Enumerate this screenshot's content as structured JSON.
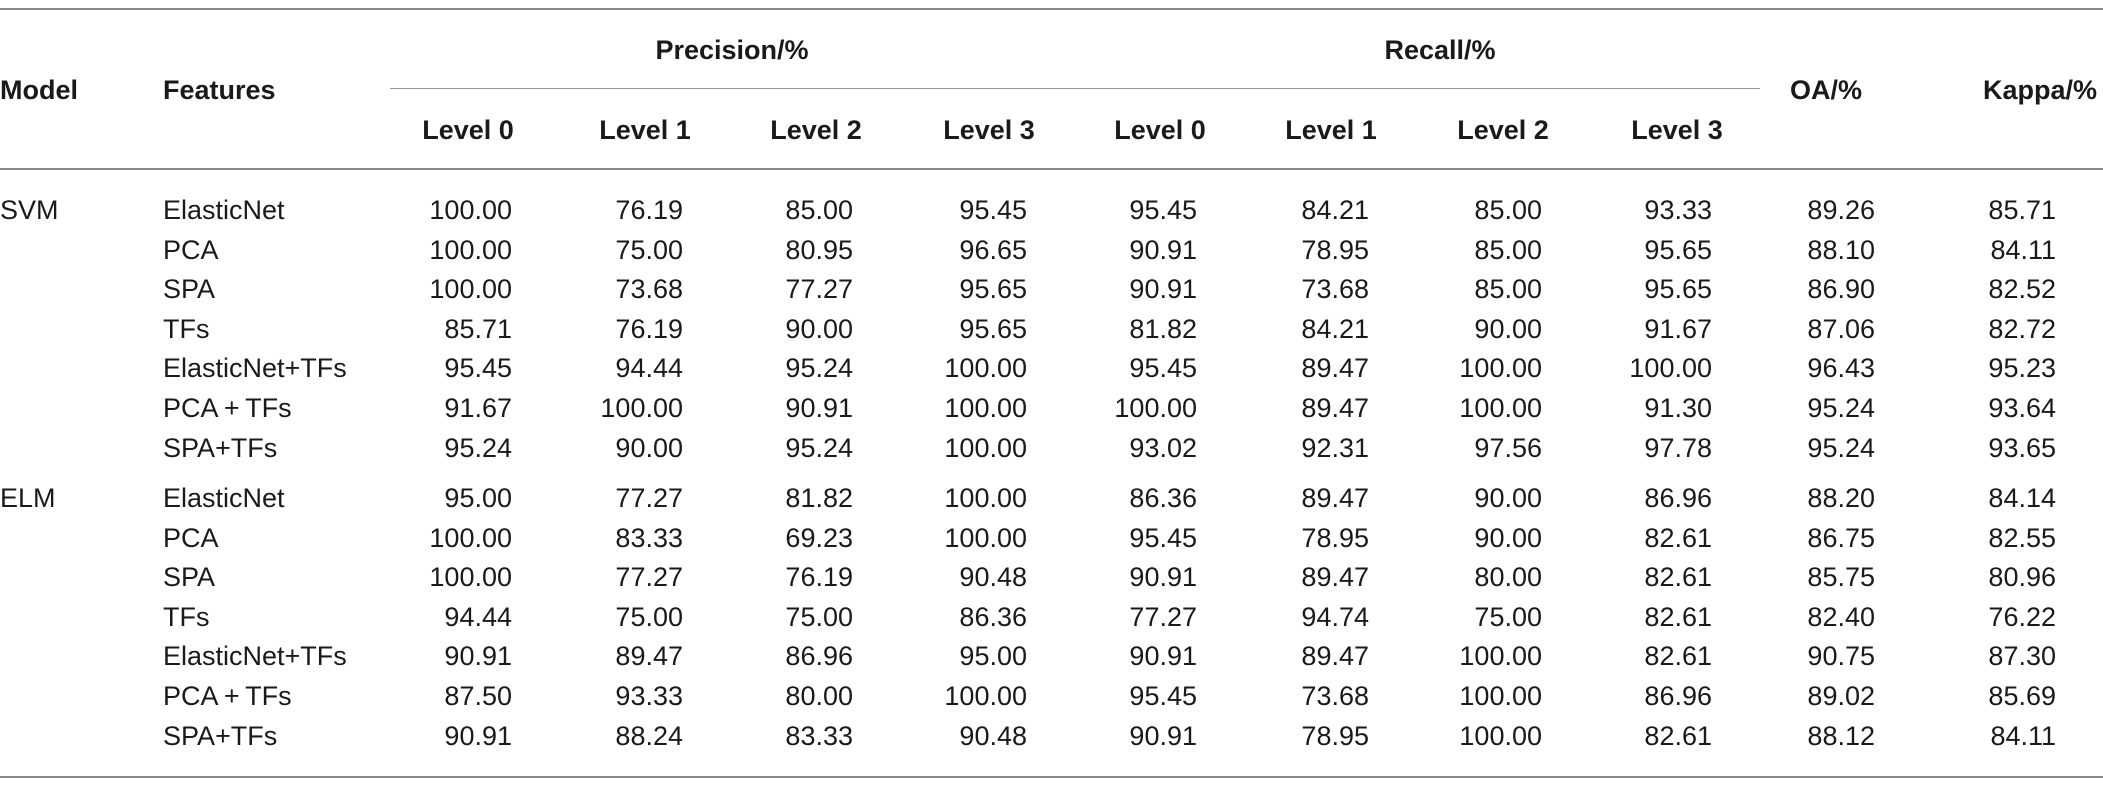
{
  "table": {
    "headers": {
      "model": "Model",
      "features": "Features",
      "precision_group": "Precision/%",
      "recall_group": "Recall/%",
      "oa": "OA/%",
      "kappa": "Kappa/%",
      "levels": [
        "Level 0",
        "Level 1",
        "Level 2",
        "Level 3"
      ]
    },
    "groups": [
      {
        "model": "SVM",
        "rows": [
          {
            "features": "ElasticNet",
            "values": [
              "100.00",
              "76.19",
              "85.00",
              "95.45",
              "95.45",
              "84.21",
              "85.00",
              "93.33",
              "89.26",
              "85.71"
            ]
          },
          {
            "features": "PCA",
            "values": [
              "100.00",
              "75.00",
              "80.95",
              "96.65",
              "90.91",
              "78.95",
              "85.00",
              "95.65",
              "88.10",
              "84.11"
            ]
          },
          {
            "features": "SPA",
            "values": [
              "100.00",
              "73.68",
              "77.27",
              "95.65",
              "90.91",
              "73.68",
              "85.00",
              "95.65",
              "86.90",
              "82.52"
            ]
          },
          {
            "features": "TFs",
            "values": [
              "85.71",
              "76.19",
              "90.00",
              "95.65",
              "81.82",
              "84.21",
              "90.00",
              "91.67",
              "87.06",
              "82.72"
            ]
          },
          {
            "features": "ElasticNet+TFs",
            "values": [
              "95.45",
              "94.44",
              "95.24",
              "100.00",
              "95.45",
              "89.47",
              "100.00",
              "100.00",
              "96.43",
              "95.23"
            ]
          },
          {
            "features": "PCA + TFs",
            "values": [
              "91.67",
              "100.00",
              "90.91",
              "100.00",
              "100.00",
              "89.47",
              "100.00",
              "91.30",
              "95.24",
              "93.64"
            ]
          },
          {
            "features": "SPA+TFs",
            "values": [
              "95.24",
              "90.00",
              "95.24",
              "100.00",
              "93.02",
              "92.31",
              "97.56",
              "97.78",
              "95.24",
              "93.65"
            ]
          }
        ]
      },
      {
        "model": "ELM",
        "rows": [
          {
            "features": "ElasticNet",
            "values": [
              "95.00",
              "77.27",
              "81.82",
              "100.00",
              "86.36",
              "89.47",
              "90.00",
              "86.96",
              "88.20",
              "84.14"
            ]
          },
          {
            "features": "PCA",
            "values": [
              "100.00",
              "83.33",
              "69.23",
              "100.00",
              "95.45",
              "78.95",
              "90.00",
              "82.61",
              "86.75",
              "82.55"
            ]
          },
          {
            "features": "SPA",
            "values": [
              "100.00",
              "77.27",
              "76.19",
              "90.48",
              "90.91",
              "89.47",
              "80.00",
              "82.61",
              "85.75",
              "80.96"
            ]
          },
          {
            "features": "TFs",
            "values": [
              "94.44",
              "75.00",
              "75.00",
              "86.36",
              "77.27",
              "94.74",
              "75.00",
              "82.61",
              "82.40",
              "76.22"
            ]
          },
          {
            "features": "ElasticNet+TFs",
            "values": [
              "90.91",
              "89.47",
              "86.96",
              "95.00",
              "90.91",
              "89.47",
              "100.00",
              "82.61",
              "90.75",
              "87.30"
            ]
          },
          {
            "features": "PCA + TFs",
            "values": [
              "87.50",
              "93.33",
              "80.00",
              "100.00",
              "95.45",
              "73.68",
              "100.00",
              "86.96",
              "89.02",
              "85.69"
            ]
          },
          {
            "features": "SPA+TFs",
            "values": [
              "90.91",
              "88.24",
              "83.33",
              "90.48",
              "90.91",
              "78.95",
              "100.00",
              "82.61",
              "88.12",
              "84.11"
            ]
          }
        ]
      }
    ]
  }
}
